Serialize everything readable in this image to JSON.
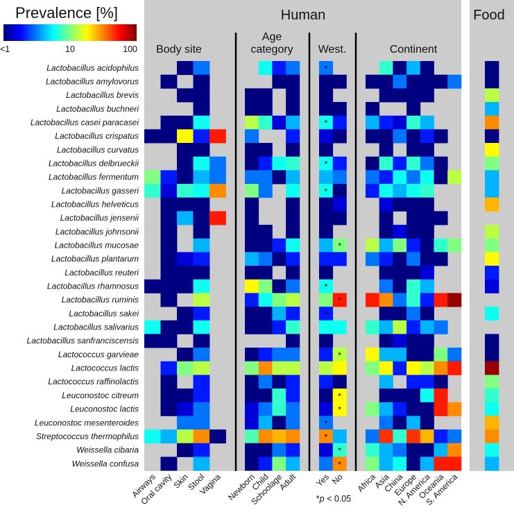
{
  "chart_data": {
    "type": "heatmap",
    "colorbar": {
      "title": "Prevalence [%]",
      "ticks": [
        "<1",
        "10",
        "100"
      ],
      "scale": "log",
      "range": [
        1,
        100
      ],
      "colormap": "jet"
    },
    "panels": [
      {
        "title": "Human",
        "groups": [
          {
            "title": "Body site",
            "columns": [
              "Airways",
              "Oral cavity",
              "Skin",
              "Stool",
              "Vagina"
            ]
          },
          {
            "title_line1": "Age",
            "title_line2": "category",
            "columns": [
              "Newborn",
              "Child",
              "Schoolage",
              "Adult"
            ]
          },
          {
            "title": "West.",
            "columns": [
              "Yes",
              "No"
            ]
          },
          {
            "title": "Continent",
            "columns": [
              "Africa",
              "Asia",
              "China",
              "Europe",
              "N. America",
              "Oceania",
              "S. America"
            ]
          }
        ]
      },
      {
        "title": "Food",
        "groups": [
          {
            "columns": [
              ""
            ]
          }
        ]
      }
    ],
    "missing_color": "#cccccc",
    "significance_note": {
      "star": "*",
      "p": "p",
      "rest": " < 0.05"
    },
    "rows": [
      "Lactobacillus acidophilus",
      "Lactobacillus amylovorus",
      "Lactobacillus brevis",
      "Lactobacillus buchneri",
      "Lactobacillus casei paracasei",
      "Lactobacillus crispatus",
      "Lactobacillus curvatus",
      "Lactobacillus delbrueckii",
      "Lactobacillus fermentum",
      "Lactobacillus gasseri",
      "Lactobacillus helveticus",
      "Lactobacillus jensenii",
      "Lactobacillus johnsonii",
      "Lactobacillus mucosae",
      "Lactobacillus plantarum",
      "Lactobacillus reuteri",
      "Lactobacillus rhamnosus",
      "Lactobacillus ruminis",
      "Lactobacillus sakei",
      "Lactobacillus salivarius",
      "Lactobacillus sanfranciscensis",
      "Lactococcus garvieae",
      "Lactococcus lactis",
      "Lactococcus raffinolactis",
      "Leuconostoc citreum",
      "Leuconostoc lactis",
      "Leuconostoc mesenteroides",
      "Streptococcus thermophilus",
      "Weissella cibaria",
      "Weissella confusa"
    ],
    "values_percent": [
      [
        null,
        null,
        1,
        3,
        null,
        null,
        6,
        2,
        3,
        3,
        null,
        null,
        7,
        1,
        4,
        1,
        null,
        null,
        1
      ],
      [
        null,
        1,
        null,
        1,
        null,
        null,
        null,
        1,
        1,
        1,
        1,
        1,
        1,
        3,
        1,
        1,
        1,
        3,
        1
      ],
      [
        null,
        null,
        1,
        1,
        null,
        1,
        1,
        null,
        1,
        1,
        null,
        null,
        1,
        1,
        1,
        1,
        null,
        null,
        13
      ],
      [
        null,
        null,
        null,
        1,
        null,
        1,
        1,
        null,
        1,
        1,
        1,
        1,
        null,
        null,
        1,
        null,
        null,
        null,
        4
      ],
      [
        null,
        1,
        1,
        6,
        null,
        13,
        7,
        1.5,
        4,
        6,
        2,
        4,
        2,
        1.5,
        7,
        4,
        null,
        null,
        30
      ],
      [
        1,
        1,
        18,
        2,
        50,
        3,
        null,
        null,
        2,
        1.5,
        1,
        1,
        1,
        3,
        1,
        2,
        1,
        null,
        1
      ],
      [
        null,
        null,
        1,
        1,
        null,
        1,
        1,
        null,
        1,
        1,
        null,
        null,
        1,
        null,
        1,
        1,
        null,
        null,
        18
      ],
      [
        null,
        null,
        1,
        6,
        3,
        1,
        2,
        6,
        7,
        6,
        2,
        1,
        7,
        2,
        7,
        3,
        1,
        null,
        10
      ],
      [
        10,
        2,
        1,
        4,
        3,
        3,
        3,
        1,
        4,
        4,
        3,
        3,
        2,
        6,
        3,
        6,
        1,
        13,
        4
      ],
      [
        7,
        1.5,
        7,
        6,
        30,
        10,
        3,
        null,
        6,
        6,
        1,
        2,
        6,
        4,
        6,
        7,
        null,
        null,
        4
      ],
      [
        null,
        1,
        1,
        1,
        null,
        1,
        null,
        null,
        1,
        1,
        1.5,
        null,
        1.5,
        1,
        1,
        1,
        null,
        null,
        25
      ],
      [
        null,
        1,
        4,
        1,
        50,
        1,
        null,
        null,
        1,
        1,
        1,
        null,
        1,
        null,
        1,
        1,
        1,
        null,
        null
      ],
      [
        null,
        1,
        null,
        1,
        null,
        1,
        1,
        null,
        1,
        1,
        null,
        null,
        1,
        1.5,
        1,
        1,
        null,
        null,
        13
      ],
      [
        null,
        1,
        null,
        4,
        null,
        1,
        1,
        2,
        6,
        4,
        10,
        13,
        4,
        10,
        2,
        1,
        7,
        10,
        10
      ],
      [
        null,
        1,
        1.5,
        2,
        null,
        4,
        3,
        1,
        2,
        2,
        2,
        3,
        2,
        1,
        3,
        1,
        1,
        null,
        18
      ],
      [
        null,
        1,
        1,
        1,
        null,
        1,
        1,
        null,
        1,
        1,
        null,
        null,
        1,
        1,
        1,
        1.5,
        null,
        null,
        2
      ],
      [
        1,
        1,
        1,
        6,
        null,
        18,
        10,
        1,
        3,
        6,
        null,
        null,
        3,
        1,
        7,
        4,
        null,
        null,
        1.5
      ],
      [
        null,
        1,
        null,
        13,
        null,
        2,
        6,
        10,
        13,
        10,
        50,
        50,
        30,
        3,
        7,
        2,
        50,
        90,
        null
      ],
      [
        null,
        null,
        1,
        2,
        null,
        1,
        1,
        4,
        2,
        2,
        null,
        null,
        1,
        1,
        3,
        1,
        null,
        null,
        6
      ],
      [
        6,
        1,
        1,
        6,
        null,
        1,
        1,
        2,
        7,
        6,
        6,
        7,
        4,
        13,
        2,
        4,
        3,
        null,
        null
      ],
      [
        1,
        1,
        null,
        1,
        null,
        null,
        null,
        null,
        1,
        1,
        null,
        null,
        1,
        1.5,
        1,
        1,
        null,
        null,
        1
      ],
      [
        null,
        null,
        1,
        3,
        null,
        1,
        2,
        3,
        3,
        2,
        13,
        18,
        4,
        4,
        1,
        1,
        10,
        3,
        1
      ],
      [
        null,
        2,
        10,
        13,
        null,
        10,
        30,
        13,
        13,
        13,
        18,
        10,
        18,
        2,
        18,
        13,
        30,
        50,
        90
      ],
      [
        null,
        1,
        null,
        2,
        null,
        1,
        3,
        1,
        2,
        2,
        1,
        null,
        4,
        null,
        2,
        2,
        1,
        null,
        10
      ],
      [
        null,
        1,
        1,
        2,
        null,
        1,
        1,
        7,
        2,
        1,
        18,
        null,
        1,
        1,
        1,
        6,
        50,
        null,
        7
      ],
      [
        null,
        1,
        1.5,
        3,
        null,
        1.5,
        3,
        7,
        3,
        1.5,
        18,
        10,
        4,
        2,
        1,
        1,
        50,
        30,
        6
      ],
      [
        null,
        null,
        3,
        3,
        null,
        1.5,
        4,
        1,
        3,
        3,
        null,
        null,
        3,
        1,
        4,
        1,
        null,
        null,
        25
      ],
      [
        6,
        4,
        13,
        30,
        1,
        8,
        30,
        25,
        30,
        30,
        4,
        3,
        45,
        7,
        45,
        25,
        2,
        3,
        30
      ],
      [
        null,
        null,
        1,
        2,
        null,
        1,
        1,
        3,
        2,
        1.5,
        7,
        7,
        4,
        3,
        1,
        1,
        4,
        30,
        6
      ],
      [
        null,
        1,
        null,
        4,
        null,
        1,
        2,
        10,
        4,
        3,
        30,
        10,
        4,
        6,
        1,
        4,
        50,
        50,
        4
      ]
    ],
    "significant_west": {
      "Yes": [
        0,
        4,
        7,
        9,
        16,
        18,
        26,
        27
      ],
      "No": [
        13,
        17,
        21,
        24,
        25,
        28,
        29
      ]
    }
  }
}
